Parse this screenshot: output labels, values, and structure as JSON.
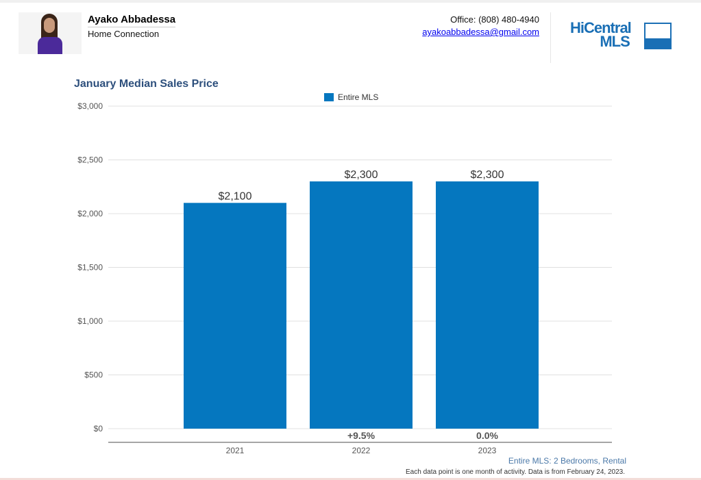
{
  "header": {
    "agent_name": "Ayako Abbadessa",
    "company": "Home Connection",
    "office": "Office: (808) 480-4940",
    "email": "ayakoabbadessa@gmail.com",
    "logo_line1": "HiCentral",
    "logo_line2": "MLS"
  },
  "chart_data": {
    "type": "bar",
    "title": "January Median Sales Price",
    "categories": [
      "2021",
      "2022",
      "2023"
    ],
    "series": [
      {
        "name": "Entire MLS",
        "values": [
          2100,
          2300,
          2300
        ],
        "color": "#0577bf"
      }
    ],
    "data_labels": [
      "$2,100",
      "$2,300",
      "$2,300"
    ],
    "change_labels": [
      "",
      "+9.5%",
      "0.0%"
    ],
    "ylim": [
      0,
      3000
    ],
    "yticks": [
      "$0",
      "$500",
      "$1,000",
      "$1,500",
      "$2,000",
      "$2,500",
      "$3,000"
    ],
    "legend_position": "top-center",
    "grid": true,
    "subtitle": "Entire MLS: 2 Bedrooms, Rental",
    "footnote": "Each data point is one month of activity. Data is from February 24, 2023."
  }
}
